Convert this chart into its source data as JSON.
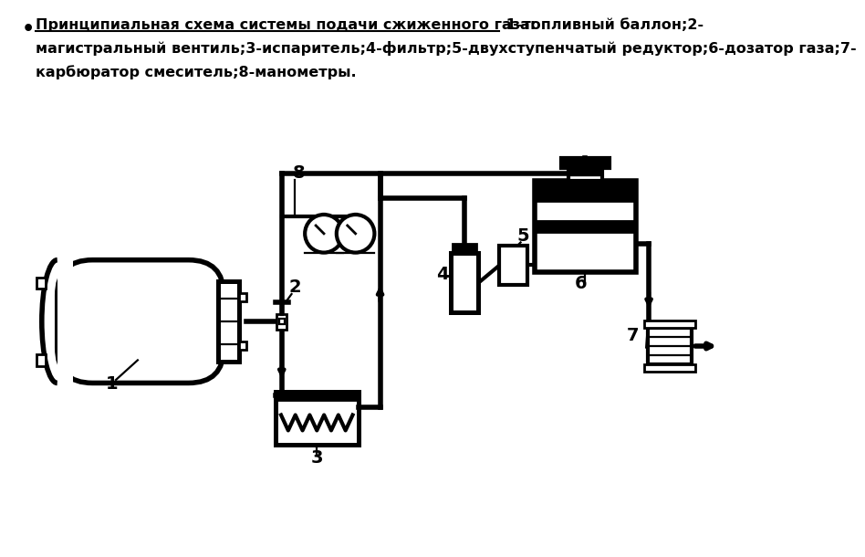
{
  "bg_color": "#ffffff",
  "lc": "#000000",
  "lw": 2.0,
  "title_underlined": "Принципиальная схема системы подачи сжиженного газа:",
  "title_rest_line1": " 1-топливный баллон;2-",
  "title_rest_line2": "магистральный вентиль;3-испаритель;4-фильтр;5-двухступенчатый редуктор;6-дозатор газа;7-",
  "title_rest_line3": "карбюратор смеситель;8-манометры."
}
